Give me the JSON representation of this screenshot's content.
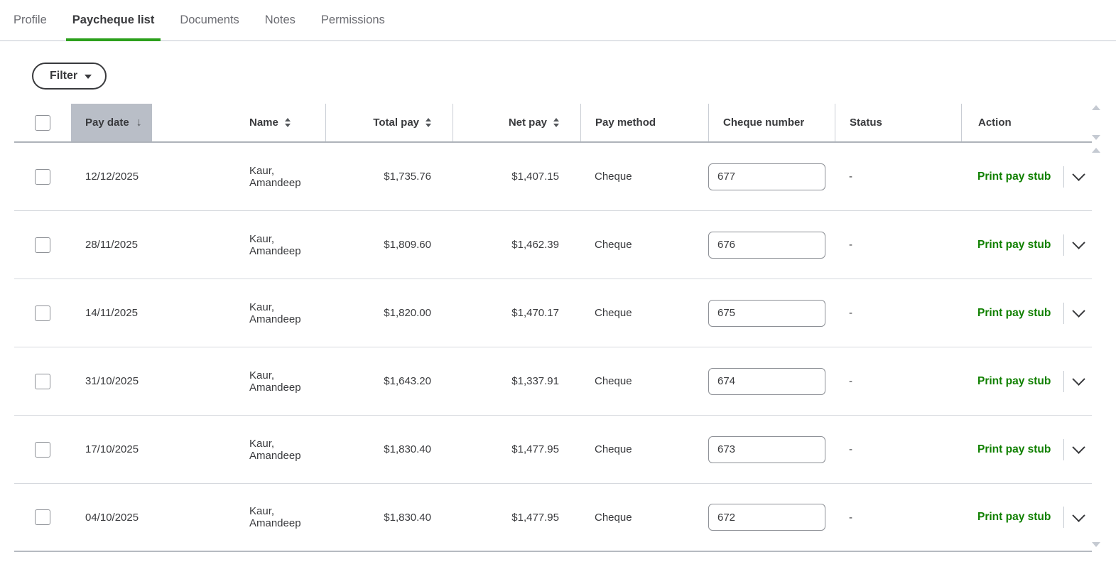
{
  "tabs": [
    {
      "label": "Profile",
      "active": false
    },
    {
      "label": "Paycheque list",
      "active": true
    },
    {
      "label": "Documents",
      "active": false
    },
    {
      "label": "Notes",
      "active": false
    },
    {
      "label": "Permissions",
      "active": false
    }
  ],
  "filter": {
    "label": "Filter"
  },
  "table": {
    "columns": {
      "pay_date": "Pay date",
      "name": "Name",
      "total_pay": "Total pay",
      "net_pay": "Net pay",
      "pay_method": "Pay method",
      "cheque_number": "Cheque number",
      "status": "Status",
      "action": "Action"
    },
    "sort": {
      "column": "Pay date",
      "direction": "descending"
    },
    "rows": [
      {
        "pay_date": "12/12/2025",
        "name": "Kaur, Amandeep",
        "total_pay": "$1,735.76",
        "net_pay": "$1,407.15",
        "pay_method": "Cheque",
        "cheque_number": "677",
        "status": "-",
        "action": "Print pay stub"
      },
      {
        "pay_date": "28/11/2025",
        "name": "Kaur, Amandeep",
        "total_pay": "$1,809.60",
        "net_pay": "$1,462.39",
        "pay_method": "Cheque",
        "cheque_number": "676",
        "status": "-",
        "action": "Print pay stub"
      },
      {
        "pay_date": "14/11/2025",
        "name": "Kaur, Amandeep",
        "total_pay": "$1,820.00",
        "net_pay": "$1,470.17",
        "pay_method": "Cheque",
        "cheque_number": "675",
        "status": "-",
        "action": "Print pay stub"
      },
      {
        "pay_date": "31/10/2025",
        "name": "Kaur, Amandeep",
        "total_pay": "$1,643.20",
        "net_pay": "$1,337.91",
        "pay_method": "Cheque",
        "cheque_number": "674",
        "status": "-",
        "action": "Print pay stub"
      },
      {
        "pay_date": "17/10/2025",
        "name": "Kaur, Amandeep",
        "total_pay": "$1,830.40",
        "net_pay": "$1,477.95",
        "pay_method": "Cheque",
        "cheque_number": "673",
        "status": "-",
        "action": "Print pay stub"
      },
      {
        "pay_date": "04/10/2025",
        "name": "Kaur, Amandeep",
        "total_pay": "$1,830.40",
        "net_pay": "$1,477.95",
        "pay_method": "Cheque",
        "cheque_number": "672",
        "status": "-",
        "action": "Print pay stub"
      }
    ]
  },
  "colors": {
    "accent_green": "#2ca01c",
    "link_green": "#108000",
    "sorted_header_bg": "#b9bec7",
    "text": "#393a3d"
  }
}
